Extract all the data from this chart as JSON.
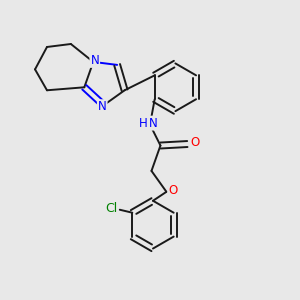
{
  "background_color": "#e8e8e8",
  "bond_color": "#1a1a1a",
  "N_color": "#0000ff",
  "O_color": "#ff0000",
  "Cl_color": "#008000",
  "H_color": "#0000ff",
  "bond_width": 1.4,
  "font_size_atom": 8.5,
  "fig_size": [
    3.0,
    3.0
  ],
  "dpi": 100,
  "xlim": [
    0,
    10
  ],
  "ylim": [
    0,
    10
  ]
}
